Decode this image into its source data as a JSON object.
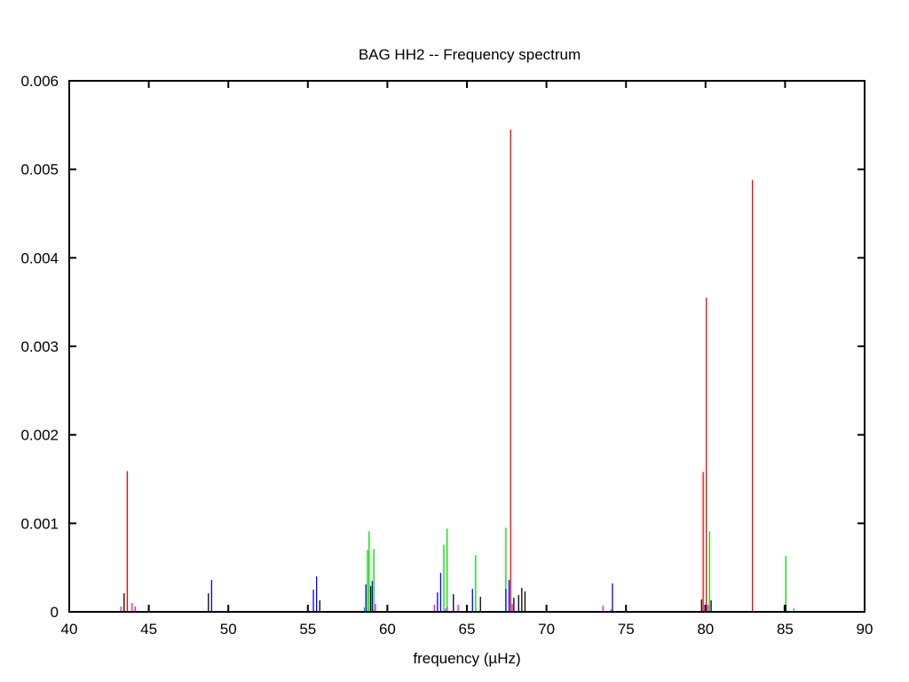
{
  "chart_data": {
    "type": "bar",
    "title": "BAG HH2 -- Frequency spectrum",
    "xlabel": "frequency (µHz)",
    "ylabel": "",
    "xlim": [
      40,
      90
    ],
    "ylim": [
      0,
      0.006
    ],
    "xticks": [
      "40",
      "45",
      "50",
      "55",
      "60",
      "65",
      "70",
      "75",
      "80",
      "85",
      "90"
    ],
    "yticks": [
      "0",
      "0.001",
      "0.002",
      "0.003",
      "0.004",
      "0.005",
      "0.006"
    ],
    "grid": false,
    "legend": "none",
    "colors": {
      "black": "#000000",
      "red": "#ff0000",
      "green": "#00dd00",
      "blue": "#0000ff",
      "magenta": "#ff00ff",
      "cyan": "#00b4b4"
    },
    "series": [
      {
        "color": "red",
        "points": [
          [
            43.65,
            0.00159
          ],
          [
            67.75,
            0.00545
          ],
          [
            79.85,
            0.00158
          ],
          [
            80.05,
            0.00355
          ],
          [
            82.95,
            0.00488
          ]
        ]
      },
      {
        "color": "green",
        "points": [
          [
            58.75,
            0.0007
          ],
          [
            58.85,
            0.00091
          ],
          [
            59.15,
            0.00071
          ],
          [
            63.55,
            0.00076
          ],
          [
            63.75,
            0.00094
          ],
          [
            65.55,
            0.00064
          ],
          [
            67.45,
            0.00095
          ],
          [
            80.25,
            0.00091
          ],
          [
            85.05,
            0.00063
          ]
        ]
      },
      {
        "color": "blue",
        "points": [
          [
            48.95,
            0.00036
          ],
          [
            55.35,
            0.00025
          ],
          [
            55.55,
            0.0004
          ],
          [
            58.65,
            0.00031
          ],
          [
            59.05,
            0.00035
          ],
          [
            63.15,
            0.00022
          ],
          [
            63.35,
            0.00044
          ],
          [
            65.35,
            0.00026
          ],
          [
            67.45,
            0.00026
          ],
          [
            67.65,
            0.00036
          ],
          [
            74.15,
            0.00032
          ]
        ]
      },
      {
        "color": "black",
        "points": [
          [
            43.45,
            0.00021
          ],
          [
            48.75,
            0.00021
          ],
          [
            55.75,
            0.00013
          ],
          [
            58.95,
            0.00029
          ],
          [
            64.15,
            0.0002
          ],
          [
            65.85,
            0.00017
          ],
          [
            67.95,
            0.00016
          ],
          [
            68.25,
            0.00019
          ],
          [
            68.45,
            0.00027
          ],
          [
            68.65,
            0.00023
          ],
          [
            79.75,
            0.00014
          ],
          [
            80.35,
            0.00013
          ],
          [
            84.95,
            8e-05
          ],
          [
            85.05,
            8e-05
          ]
        ]
      },
      {
        "color": "magenta",
        "points": [
          [
            43.25,
            6e-05
          ],
          [
            43.95,
            0.0001
          ],
          [
            44.15,
            6e-05
          ],
          [
            59.25,
            9e-05
          ],
          [
            62.95,
            8e-05
          ],
          [
            63.75,
            6e-05
          ],
          [
            64.45,
            8e-05
          ],
          [
            67.85,
            9e-05
          ],
          [
            73.55,
            7e-05
          ],
          [
            79.95,
            8e-05
          ],
          [
            80.15,
            8e-05
          ]
        ]
      },
      {
        "color": "cyan",
        "points": [
          [
            58.55,
            5e-05
          ],
          [
            63.65,
            4e-05
          ],
          [
            74.05,
            3e-05
          ],
          [
            85.55,
            4e-05
          ]
        ]
      }
    ]
  }
}
